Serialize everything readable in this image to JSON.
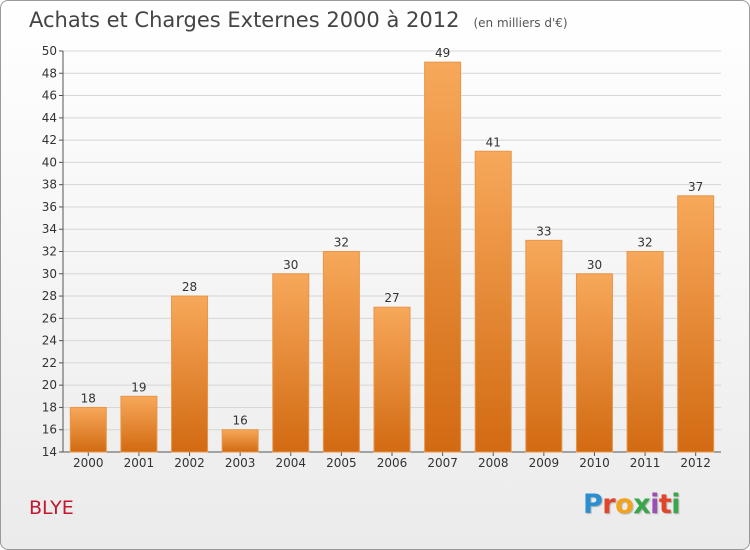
{
  "title": "Achats et Charges Externes 2000 à 2012",
  "subtitle": "(en milliers d'€)",
  "location": "BLYE",
  "logo": {
    "letters": [
      "P",
      "r",
      "o",
      "x",
      "i",
      "t",
      "i"
    ],
    "colors": [
      "#2a8fd1",
      "#e0452b",
      "#f3a21b",
      "#3aa64a",
      "#9a4fb5",
      "#e0452b",
      "#3aa64a"
    ]
  },
  "colors": {
    "bar_top": "#f7a85a",
    "bar_bottom": "#d26a12",
    "grid": "#d6d6d6",
    "axis": "#555555",
    "location": "#c0192f"
  },
  "chart_data": {
    "type": "bar",
    "title": "Achats et Charges Externes 2000 à 2012",
    "subtitle": "(en milliers d'€)",
    "categories": [
      "2000",
      "2001",
      "2002",
      "2003",
      "2004",
      "2005",
      "2006",
      "2007",
      "2008",
      "2009",
      "2010",
      "2011",
      "2012"
    ],
    "values": [
      18,
      19,
      28,
      16,
      30,
      32,
      27,
      49,
      41,
      33,
      30,
      32,
      37
    ],
    "ylim": [
      14,
      50
    ],
    "ytick_step": 2,
    "grid": true,
    "xlabel": "",
    "ylabel": ""
  }
}
